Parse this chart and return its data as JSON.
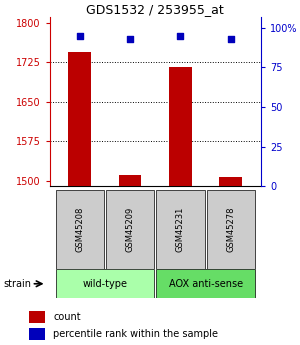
{
  "title": "GDS1532 / 253955_at",
  "samples": [
    "GSM45208",
    "GSM45209",
    "GSM45231",
    "GSM45278"
  ],
  "count_values": [
    1745,
    1511,
    1715,
    1508
  ],
  "percentile_values": [
    95,
    93,
    95,
    93
  ],
  "ylim_left": [
    1490,
    1810
  ],
  "ylim_right": [
    0,
    106.67
  ],
  "yticks_left": [
    1500,
    1575,
    1650,
    1725,
    1800
  ],
  "yticks_right": [
    0,
    25,
    50,
    75,
    100
  ],
  "ytick_labels_right": [
    "0",
    "25",
    "50",
    "75",
    "100%"
  ],
  "groups": [
    {
      "label": "wild-type",
      "samples": [
        0,
        1
      ],
      "color": "#aaffaa"
    },
    {
      "label": "AOX anti-sense",
      "samples": [
        2,
        3
      ],
      "color": "#66dd66"
    }
  ],
  "bar_color": "#bb0000",
  "dot_color": "#0000bb",
  "bar_width": 0.45,
  "sample_box_color": "#cccccc",
  "left_axis_color": "#cc0000",
  "right_axis_color": "#0000cc",
  "grid_dotted_ticks": [
    1575,
    1650,
    1725
  ]
}
